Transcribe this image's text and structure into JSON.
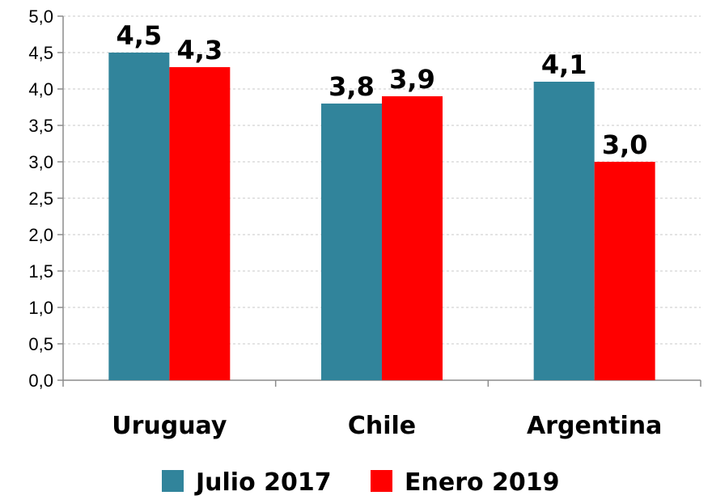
{
  "chart_data": {
    "type": "bar",
    "categories": [
      "Uruguay",
      "Chile",
      "Argentina"
    ],
    "series": [
      {
        "name": "Julio 2017",
        "values": [
          4.5,
          3.8,
          4.1
        ],
        "labels": [
          "4,5",
          "3,8",
          "4,1"
        ],
        "color": "#31849b"
      },
      {
        "name": "Enero 2019",
        "values": [
          4.3,
          3.9,
          3.0
        ],
        "labels": [
          "4,3",
          "3,9",
          "3,0"
        ],
        "color": "#ff0000"
      }
    ],
    "ylim": [
      0,
      5
    ],
    "yticks": [
      0,
      0.5,
      1,
      1.5,
      2,
      2.5,
      3,
      3.5,
      4,
      4.5,
      5
    ],
    "ytick_labels": [
      "0,0",
      "0,5",
      "1,0",
      "1,5",
      "2,0",
      "2,5",
      "3,0",
      "3,5",
      "4,0",
      "4,5",
      "5,0"
    ],
    "grid": true,
    "legend_position": "bottom"
  }
}
